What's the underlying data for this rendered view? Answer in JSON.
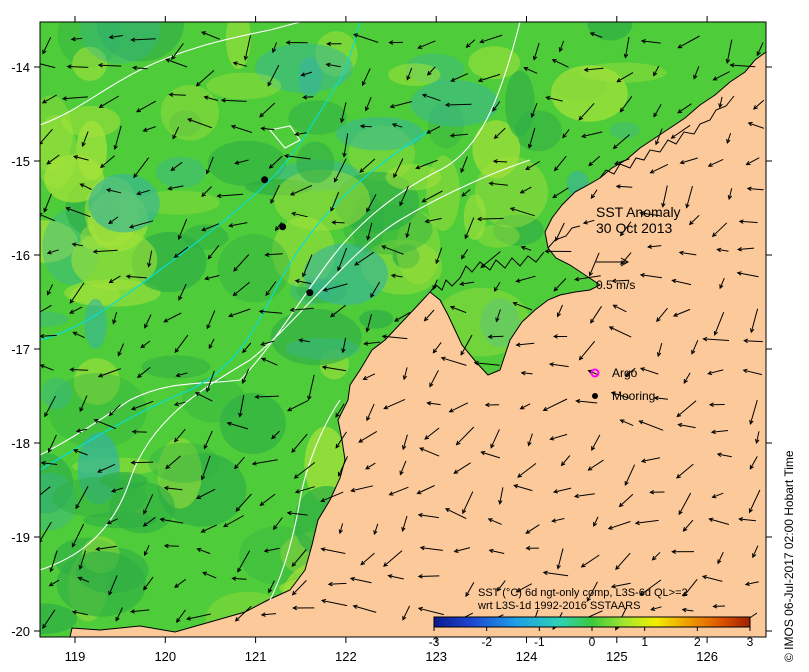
{
  "map": {
    "title": "SST Anomaly",
    "date": "30 Oct 2013",
    "velocity_scale_label": "0.5 m/s",
    "x_ticks": [
      "119",
      "120",
      "121",
      "122",
      "123",
      "124",
      "125",
      "126"
    ],
    "y_ticks": [
      "-14",
      "-15",
      "-16",
      "-17",
      "-18",
      "-19",
      "-20"
    ],
    "legend": {
      "argo_label": "Argo",
      "mooring_label": "Mooring",
      "argo_color": "#ff00ff",
      "mooring_color": "#000000"
    },
    "colorbar": {
      "caption_line1": "SST (°C) 6d ngt-only comp, L3S-6d QL>=2",
      "caption_line2": "wrt L3S-1d 1992-2016 SSTAARS",
      "tick_labels": [
        "-3",
        "-2",
        "-1",
        "0",
        "1",
        "2",
        "3"
      ],
      "min": -3,
      "max": 3,
      "colors": [
        "#0a1a8c",
        "#1e46d2",
        "#1ea0e6",
        "#2ed2b4",
        "#3cc83c",
        "#a0e632",
        "#f0f000",
        "#f0a000",
        "#e05a00",
        "#a01e00"
      ]
    },
    "credit": "© IMOS 06-Jul-2017 02:00 Hobart Time",
    "colors": {
      "land": "#fbc99a",
      "ocean_base": "#4fcc3a",
      "ocean_light": "#a6e23a",
      "ocean_dark": "#2fae45",
      "ocean_teal": "#37b59a"
    },
    "moorings": [
      {
        "lon": 121.1,
        "lat": -15.2
      },
      {
        "lon": 121.3,
        "lat": -15.7
      },
      {
        "lon": 121.6,
        "lat": -16.4
      }
    ]
  }
}
